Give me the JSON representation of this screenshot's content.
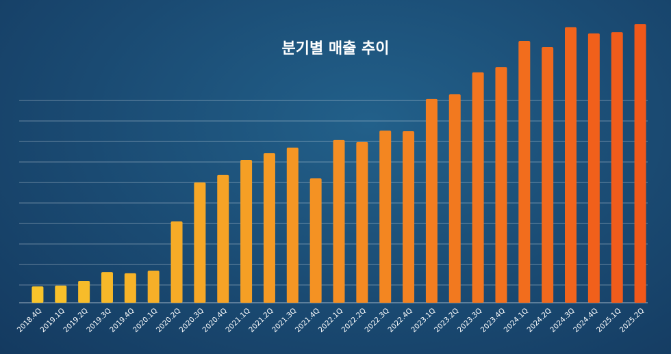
{
  "chart_data": {
    "type": "bar",
    "title": "분기별 매출 추이",
    "categories": [
      "2018.4Q",
      "2019.1Q",
      "2019.2Q",
      "2019.3Q",
      "2019.4Q",
      "2020.1Q",
      "2020.2Q",
      "2020.3Q",
      "2020.4Q",
      "2021.1Q",
      "2021.2Q",
      "2021.3Q",
      "2021.4Q",
      "2022.1Q",
      "2022.2Q",
      "2022.3Q",
      "2022.4Q",
      "2023.1Q",
      "2023.2Q",
      "2023.3Q",
      "2023.4Q",
      "2024.1Q",
      "2024.2Q",
      "2024.3Q",
      "2024.4Q",
      "2025.1Q",
      "2025.2Q"
    ],
    "values": [
      0.93,
      0.97,
      1.2,
      1.63,
      1.57,
      1.7,
      4.1,
      6.0,
      6.37,
      7.1,
      7.43,
      7.7,
      6.2,
      8.07,
      7.97,
      8.53,
      8.5,
      10.07,
      10.3,
      11.37,
      11.63,
      12.9,
      12.6,
      13.57,
      13.27,
      13.33,
      13.73
    ],
    "colors": [
      "#f8c42b",
      "#f0581a"
    ],
    "ylim": [
      0,
      14
    ],
    "yticks": [
      1,
      2,
      3,
      4,
      5,
      6,
      7,
      8,
      9,
      10
    ],
    "grid": true
  }
}
